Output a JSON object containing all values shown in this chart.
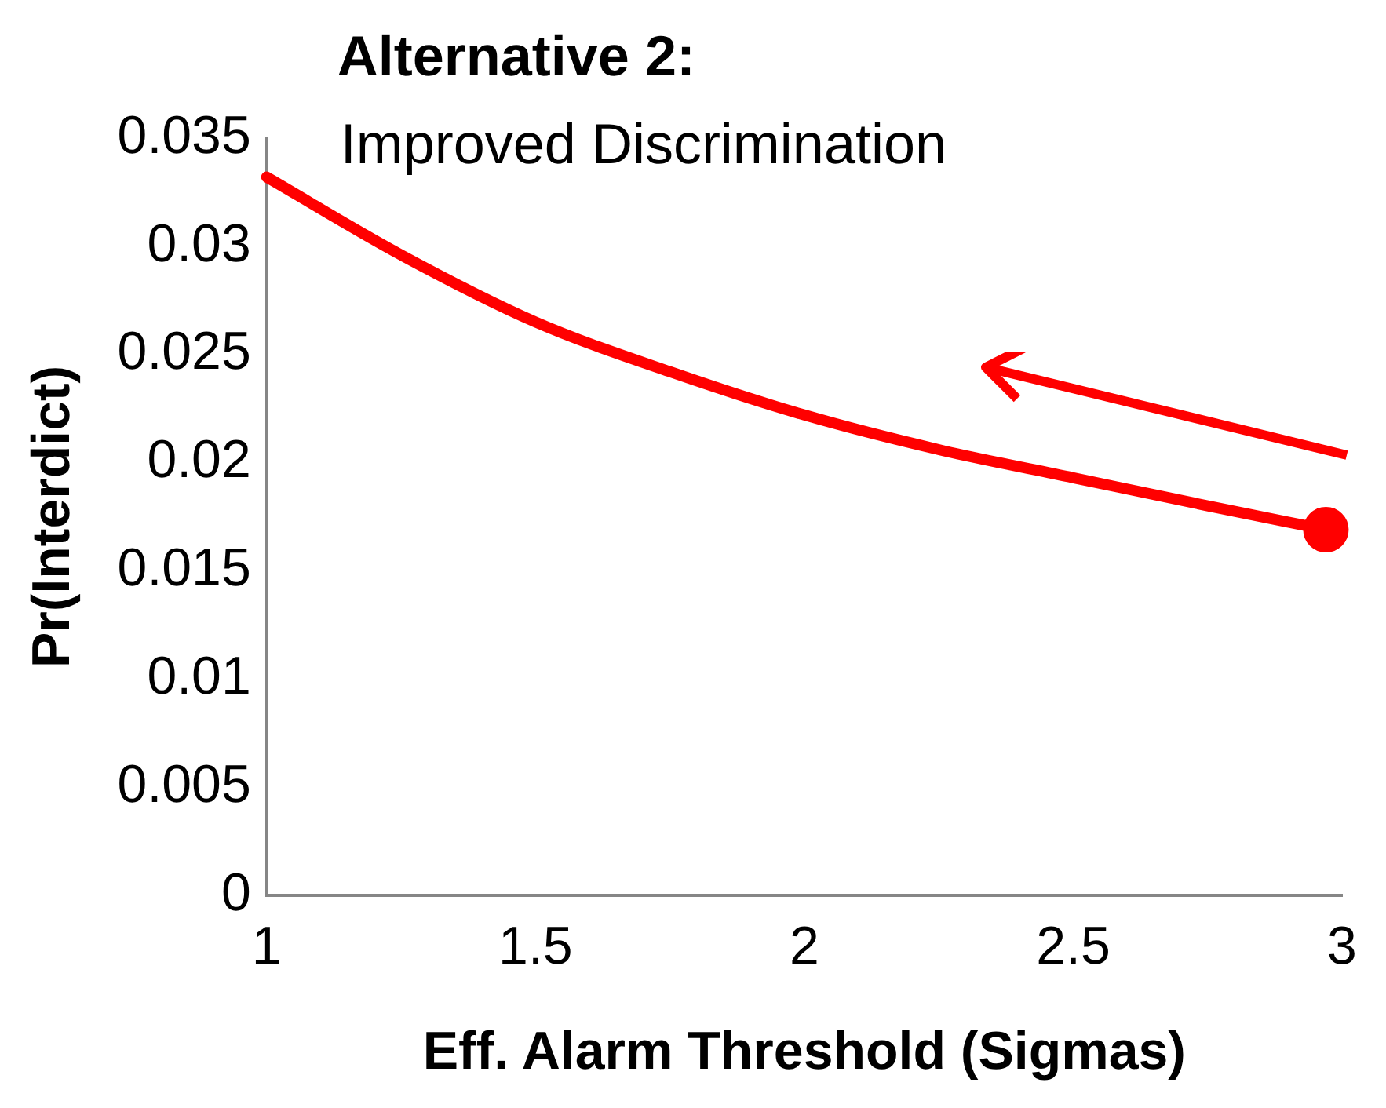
{
  "chart_data": {
    "type": "line",
    "title": "Alternative 2:",
    "subtitle": "Improved Discrimination",
    "xlabel": "Eff. Alarm Threshold (Sigmas)",
    "ylabel": "Pr(Interdict)",
    "xlim": [
      1,
      3
    ],
    "xticks": [
      1,
      1.5,
      2,
      2.5,
      3
    ],
    "ylim": [
      0,
      0.035
    ],
    "yticks": [
      0,
      0.005,
      0.01,
      0.015,
      0.02,
      0.025,
      0.03,
      0.035
    ],
    "grid": false,
    "legend": false,
    "series": [
      {
        "color": "#ff0000",
        "marker": "none",
        "x": [
          1,
          1.25,
          1.5,
          1.75,
          2,
          2.25,
          2.5,
          2.75,
          2.97
        ],
        "values": [
          0.0332,
          0.0296,
          0.0265,
          0.0242,
          0.0222,
          0.0206,
          0.0193,
          0.018,
          0.0169
        ]
      },
      {
        "type": "scatter",
        "color": "#ff0000",
        "marker": "circle",
        "x": [
          2.97
        ],
        "values": [
          0.0169
        ]
      }
    ]
  }
}
